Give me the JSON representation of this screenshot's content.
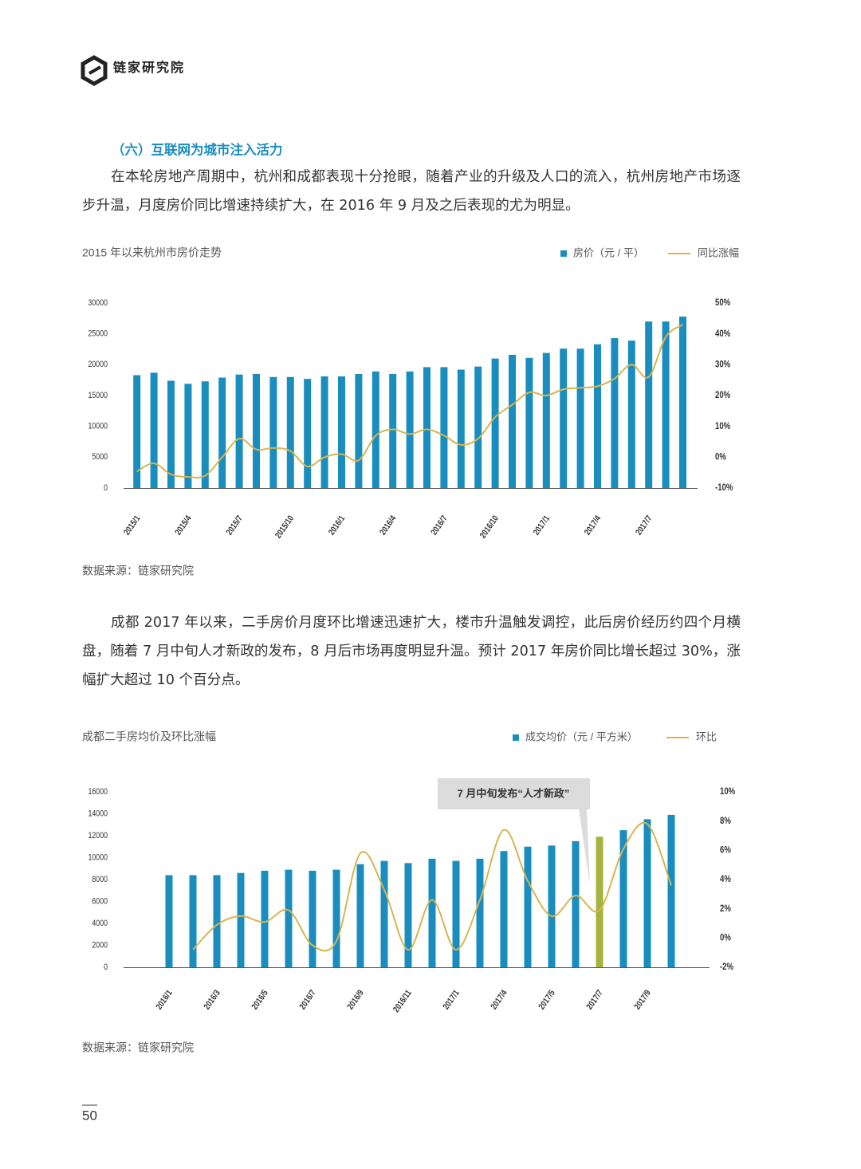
{
  "header": {
    "brand": "链家研究院"
  },
  "section_title": "（六）互联网为城市注入活力",
  "paragraphs": [
    "在本轮房地产周期中，杭州和成都表现十分抢眼，随着产业的升级及人口的流入，杭州房地产市场逐步升温，月度房价同比增速持续扩大，在 2016 年 9 月及之后表现的尤为明显。",
    "成都 2017 年以来，二手房价月度环比增速迅速扩大，楼市升温触发调控，此后房价经历约四个月横盘，随着 7 月中旬人才新政的发布，8 月后市场再度明显升温。预计 2017 年房价同比增长超过 30%，涨幅扩大超过 10 个百分点。"
  ],
  "chart_data": [
    {
      "type": "bar-line",
      "title": "2015 年以来杭州市房价走势",
      "source": "数据来源：链家研究院",
      "categories": [
        "2015/1",
        null,
        null,
        "2015/4",
        null,
        null,
        "2015/7",
        null,
        null,
        "2015/10",
        null,
        null,
        "2016/1",
        null,
        null,
        "2016/4",
        null,
        null,
        "2016/7",
        null,
        null,
        "2016/10",
        null,
        null,
        "2017/1",
        null,
        null,
        "2017/4",
        null,
        null,
        "2017/7",
        null,
        null
      ],
      "series": [
        {
          "name": "房价（元 / 平）",
          "color": "#1a8dbf",
          "type": "bar",
          "values": [
            18300,
            18700,
            17400,
            16900,
            17300,
            17900,
            18400,
            18500,
            18000,
            18000,
            17700,
            18100,
            18100,
            18500,
            18900,
            18500,
            18900,
            19600,
            19600,
            19200,
            19700,
            21000,
            21600,
            21100,
            21900,
            22600,
            22600,
            23300,
            24300,
            23900,
            27000,
            27000,
            27800
          ]
        },
        {
          "name": "同比涨幅",
          "color": "#d8b450",
          "type": "line",
          "axis": "y2",
          "values": [
            -4.6,
            -2,
            -5.6,
            -6.4,
            -6,
            0,
            6,
            2.5,
            3,
            2,
            -3,
            0,
            1,
            -1,
            7,
            9,
            7.5,
            9,
            7,
            4,
            6,
            13,
            17,
            21,
            20,
            22,
            22.5,
            23,
            25.5,
            30,
            26,
            39,
            43
          ]
        }
      ],
      "ylim": [
        0,
        30000
      ],
      "yticks": [
        0,
        5000,
        10000,
        15000,
        20000,
        25000,
        30000
      ],
      "y2lim": [
        -10,
        50
      ],
      "y2ticks": [
        {
          "value": -10,
          "label": "-10%"
        },
        {
          "value": 0,
          "label": "0%"
        },
        {
          "value": 10,
          "label": "10%"
        },
        {
          "value": 20,
          "label": "20%"
        },
        {
          "value": 30,
          "label": "30%"
        },
        {
          "value": 40,
          "label": "40%"
        },
        {
          "value": 50,
          "label": "50%"
        }
      ],
      "grid": false
    },
    {
      "type": "bar-line",
      "title": "成都二手房均价及环比涨幅",
      "source": "数据来源：链家研究院",
      "annotation": "7 月中旬发布“人才新政”",
      "categories": [
        "2016/1",
        null,
        "2016/3",
        null,
        "2016/5",
        null,
        "2016/7",
        null,
        "2016/9",
        null,
        "2016/11",
        null,
        "2017/1",
        null,
        "2017/4",
        null,
        "2017/5",
        null,
        "2017/7",
        null,
        "2017/9",
        null
      ],
      "series": [
        {
          "name": "成交均价（元 / 平方米）",
          "color": "#1a8dbf",
          "type": "bar",
          "colors": [
            "#1a8dbf",
            "#1a8dbf",
            "#1a8dbf",
            "#1a8dbf",
            "#1a8dbf",
            "#1a8dbf",
            "#1a8dbf",
            "#1a8dbf",
            "#1a8dbf",
            "#1a8dbf",
            "#1a8dbf",
            "#1a8dbf",
            "#1a8dbf",
            "#1a8dbf",
            "#1a8dbf",
            "#1a8dbf",
            "#1a8dbf",
            "#1a8dbf",
            "#a5b43c",
            "#1a8dbf",
            "#1a8dbf",
            "#1a8dbf"
          ],
          "values": [
            8400,
            8400,
            8400,
            8600,
            8800,
            8900,
            8800,
            8900,
            9400,
            9700,
            9500,
            9900,
            9700,
            9900,
            10600,
            11000,
            11100,
            11500,
            11900,
            12500,
            13500,
            13900
          ]
        },
        {
          "name": "环比",
          "color": "#d8b450",
          "type": "line",
          "axis": "y2",
          "values": [
            null,
            -0.8,
            0.9,
            1.5,
            1.1,
            1.9,
            -0.5,
            -0.2,
            5.8,
            3.3,
            -0.8,
            2.6,
            -0.8,
            2.6,
            7.4,
            3.9,
            1.5,
            2.9,
            1.9,
            6.1,
            7.8,
            3.6
          ]
        }
      ],
      "ylim": [
        0,
        16000
      ],
      "yticks": [
        0,
        2000,
        4000,
        6000,
        8000,
        10000,
        12000,
        14000,
        16000
      ],
      "y2lim": [
        -2,
        10
      ],
      "y2ticks": [
        {
          "value": -2,
          "label": "-2%"
        },
        {
          "value": 0,
          "label": "0%"
        },
        {
          "value": 2,
          "label": "2%"
        },
        {
          "value": 4,
          "label": "4%"
        },
        {
          "value": 6,
          "label": "6%"
        },
        {
          "value": 8,
          "label": "8%"
        },
        {
          "value": 10,
          "label": "10%"
        }
      ],
      "grid": false
    }
  ],
  "page_number": "50"
}
